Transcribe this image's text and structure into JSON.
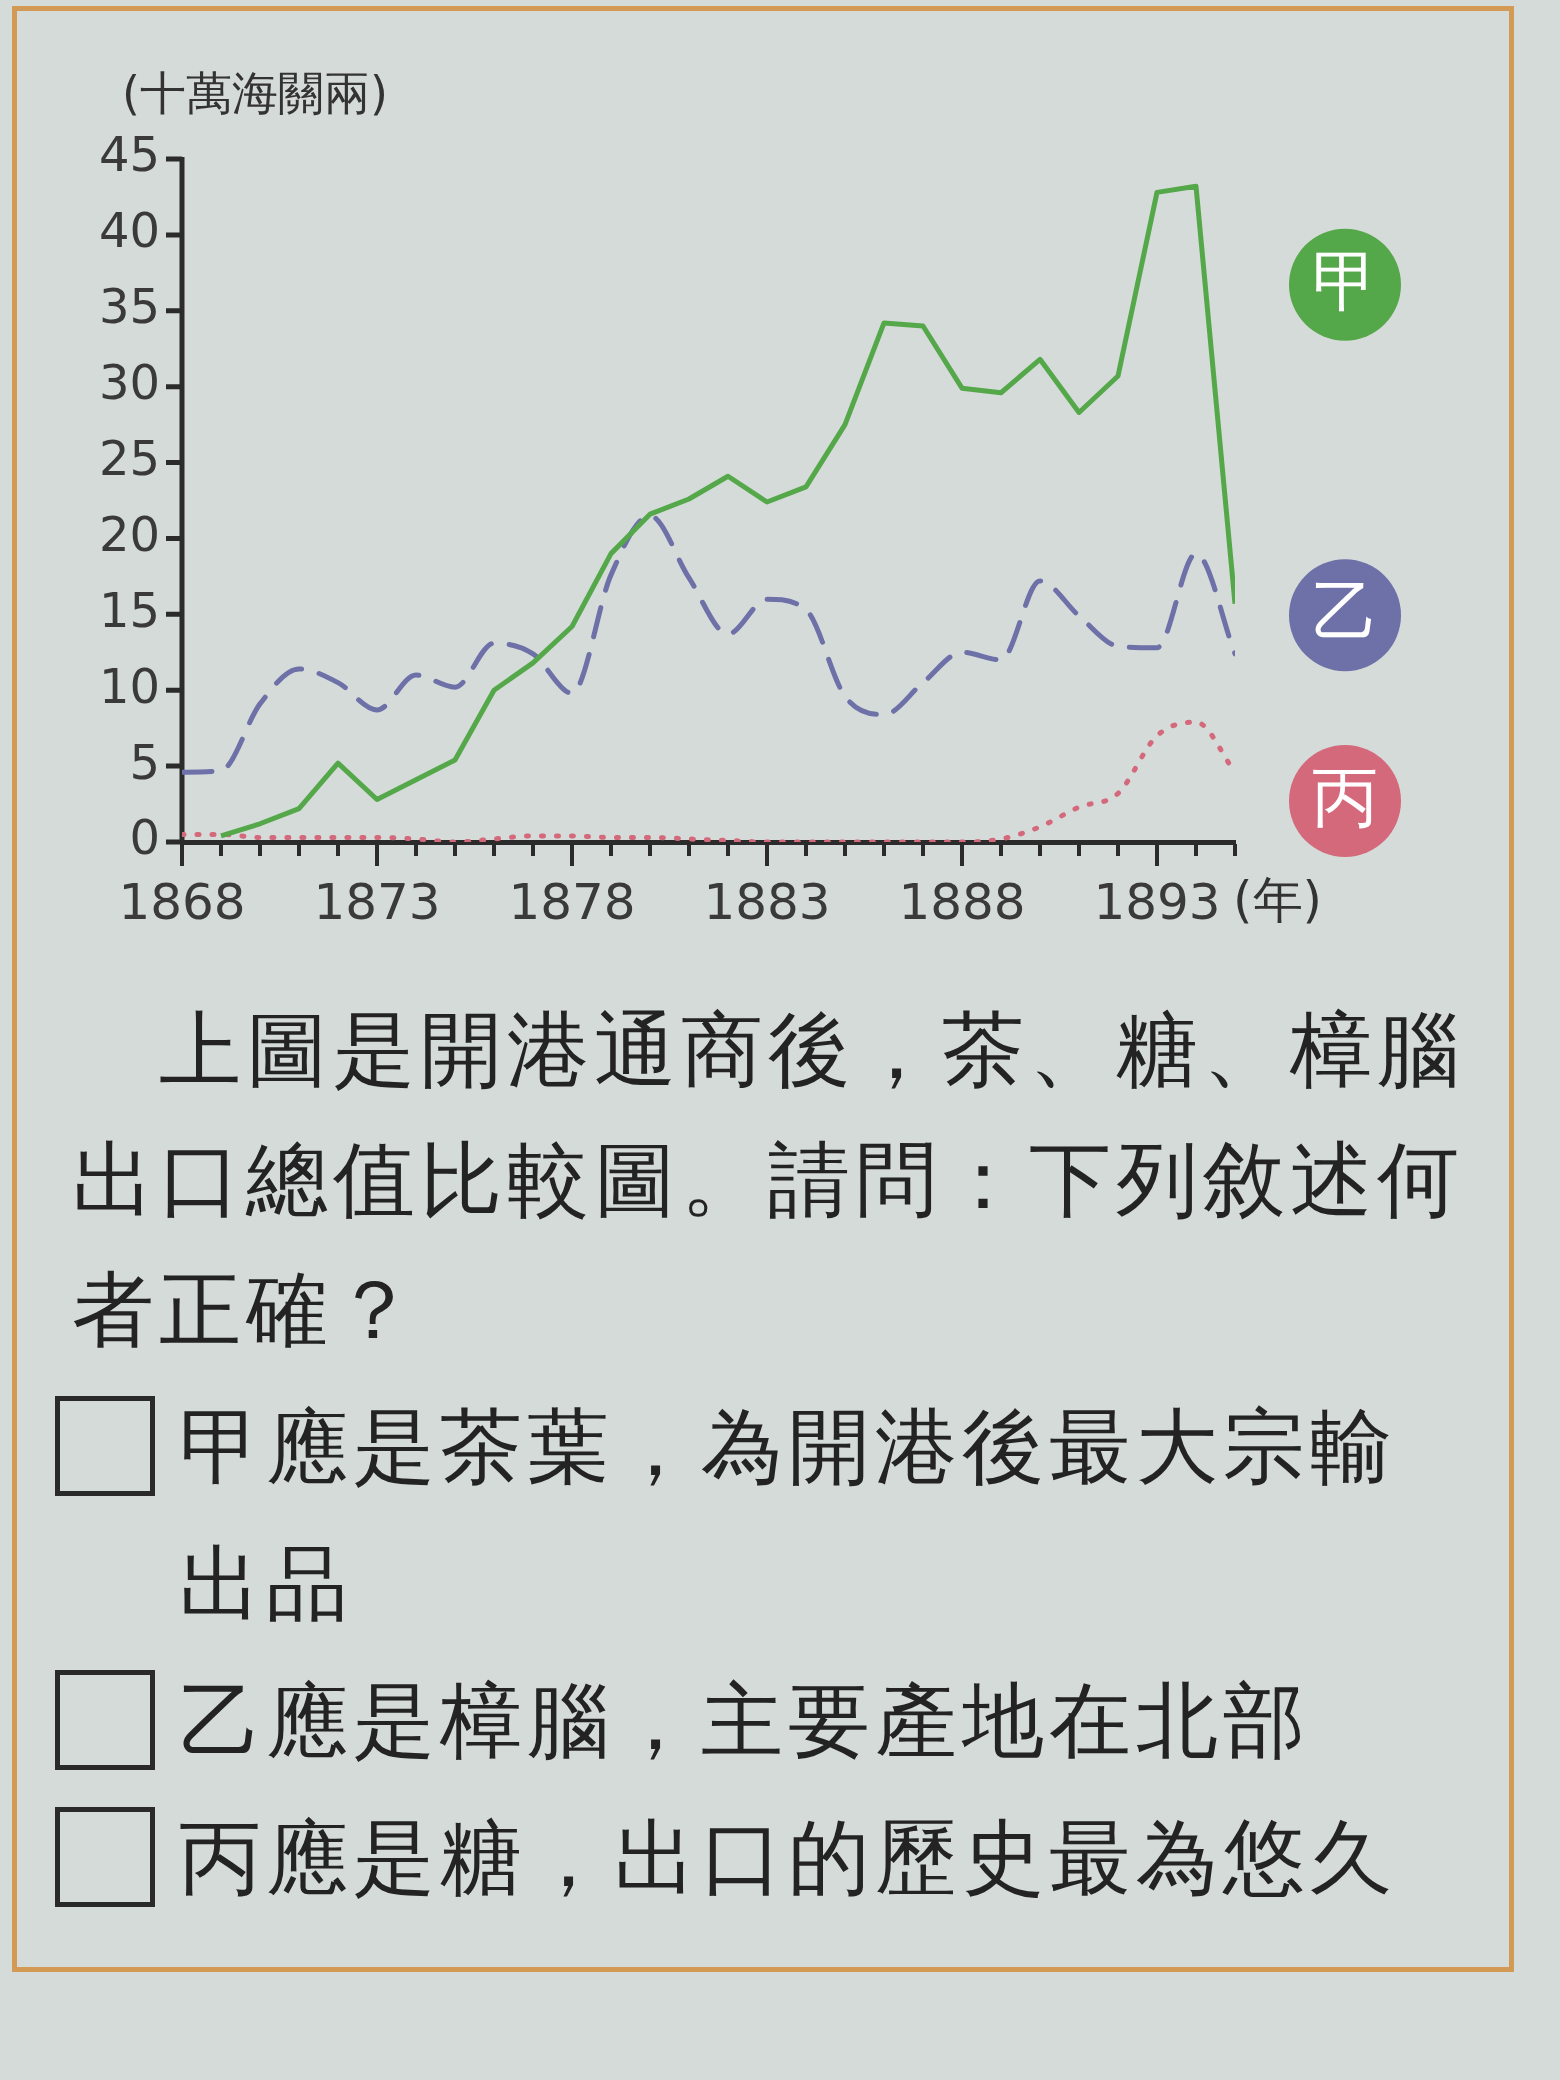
{
  "chart_data": {
    "type": "line",
    "ylabel": "(十萬海關兩)",
    "xlabel": "(年)",
    "x": [
      1868,
      1869,
      1870,
      1871,
      1872,
      1873,
      1874,
      1875,
      1876,
      1877,
      1878,
      1879,
      1880,
      1881,
      1882,
      1883,
      1884,
      1885,
      1886,
      1887,
      1888,
      1889,
      1890,
      1891,
      1892,
      1893,
      1894,
      1895
    ],
    "xlim": [
      1868,
      1895
    ],
    "xticks": [
      1868,
      {
        "value": 1869,
        "label": null
      },
      {
        "value": 1870,
        "label": null
      },
      {
        "value": 1871,
        "label": null
      },
      {
        "value": 1872,
        "label": null
      },
      1873,
      {
        "value": 1874,
        "label": null
      },
      {
        "value": 1875,
        "label": null
      },
      {
        "value": 1876,
        "label": null
      },
      {
        "value": 1877,
        "label": null
      },
      1878,
      {
        "value": 1879,
        "label": null
      },
      {
        "value": 1880,
        "label": null
      },
      {
        "value": 1881,
        "label": null
      },
      {
        "value": 1882,
        "label": null
      },
      1883,
      {
        "value": 1884,
        "label": null
      },
      {
        "value": 1885,
        "label": null
      },
      {
        "value": 1886,
        "label": null
      },
      {
        "value": 1887,
        "label": null
      },
      1888,
      {
        "value": 1889,
        "label": null
      },
      {
        "value": 1890,
        "label": null
      },
      {
        "value": 1891,
        "label": null
      },
      {
        "value": 1892,
        "label": null
      },
      1893,
      {
        "value": 1894,
        "label": null
      },
      {
        "value": 1895,
        "label": null
      }
    ],
    "ylim": [
      0,
      45
    ],
    "yticks": [
      0,
      5,
      10,
      15,
      20,
      25,
      30,
      35,
      40,
      45
    ],
    "legend": "right",
    "marker": "none",
    "series": [
      {
        "name": "甲",
        "color": "#55a84a",
        "line_style": "solid",
        "values": [
          null,
          0.4,
          1.2,
          2.2,
          5.2,
          2.8,
          4.1,
          5.4,
          10.0,
          11.8,
          14.2,
          19.0,
          21.6,
          22.6,
          24.1,
          22.4,
          23.4,
          27.5,
          34.2,
          34.0,
          29.9,
          29.6,
          31.8,
          28.3,
          30.7,
          42.8,
          43.2,
          15.7
        ]
      },
      {
        "name": "乙",
        "color": "#6e70a8",
        "line_style": "dashed",
        "values": [
          4.6,
          4.7,
          9.1,
          11.4,
          10.5,
          8.7,
          11.0,
          10.2,
          13.1,
          12.4,
          9.8,
          17.6,
          21.5,
          17.4,
          13.7,
          16.0,
          15.3,
          9.6,
          8.4,
          10.5,
          12.5,
          12.0,
          17.2,
          14.9,
          12.9,
          12.8,
          19.0,
          12.4
        ]
      },
      {
        "name": "丙",
        "color": "#d4697c",
        "line_style": "dotted",
        "values": [
          0.5,
          0.5,
          0.3,
          0.3,
          0.3,
          0.3,
          0.2,
          0.0,
          0.2,
          0.4,
          0.4,
          0.3,
          0.3,
          0.2,
          0.1,
          0.0,
          0.0,
          0.0,
          0.0,
          0.0,
          0.0,
          0.2,
          1.0,
          2.3,
          3.2,
          7.0,
          7.9,
          4.6
        ]
      }
    ],
    "annotations": [
      "上圖是開港通商後，茶、糖、樟腦出口總值比較圖。請問：下列敘述何者正確？",
      "甲應是茶葉，為開港後最大宗輸出品",
      "乙應是樟腦，主要產地在北部",
      "丙應是糖，出口的歷史最為悠久"
    ]
  }
}
